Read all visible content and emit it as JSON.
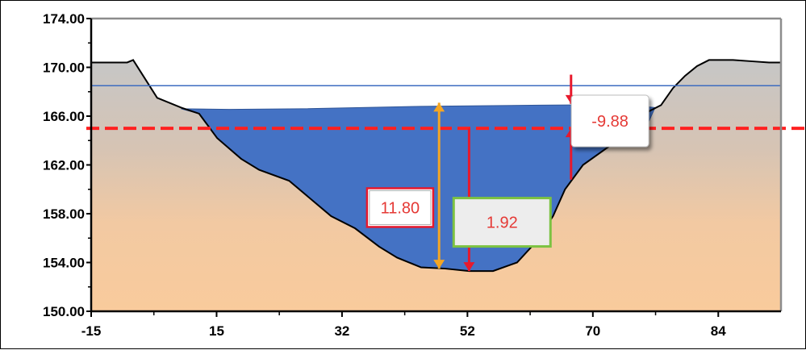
{
  "chart_data": {
    "type": "area",
    "title": "",
    "xlabel": "",
    "ylabel": "",
    "xlim": [
      -15,
      100
    ],
    "ylim": [
      150,
      174
    ],
    "y_ticks": [
      150.0,
      154.0,
      158.0,
      162.0,
      166.0,
      170.0,
      174.0
    ],
    "y_tick_labels": [
      "150.00",
      "154.00",
      "158.00",
      "162.00",
      "166.00",
      "170.00",
      "174.00"
    ],
    "x_tick_labels": [
      "-15",
      "15",
      "32",
      "52",
      "70",
      "84"
    ],
    "grid": false,
    "legend": "none",
    "series": [
      {
        "kind": "terrain",
        "x": [
          -15,
          -11,
          -9,
          -8,
          -4,
          0,
          3,
          6,
          10,
          13,
          18,
          25,
          29,
          33,
          36,
          40,
          44,
          48,
          52,
          56,
          59,
          62,
          64,
          67,
          71,
          75,
          78,
          80,
          82,
          84,
          86,
          88,
          90,
          92,
          95,
          98,
          100
        ],
        "y": [
          170.4,
          170.4,
          170.4,
          170.6,
          167.5,
          166.7,
          166.2,
          164.2,
          162.5,
          161.6,
          160.7,
          157.8,
          156.8,
          155.3,
          154.4,
          153.6,
          153.5,
          153.3,
          153.3,
          154.0,
          155.6,
          157.8,
          160.0,
          162.0,
          163.4,
          164.7,
          166.4,
          166.9,
          168.3,
          169.3,
          170.1,
          170.6,
          170.6,
          170.6,
          170.5,
          170.4,
          170.4
        ]
      },
      {
        "kind": "water",
        "x": [
          0,
          8,
          20,
          40,
          60,
          74,
          79,
          78,
          75,
          71,
          67,
          64,
          62,
          59,
          56,
          52,
          48,
          44,
          40,
          36,
          33,
          29,
          25,
          18,
          13,
          10,
          6,
          3,
          0
        ],
        "y": [
          166.6,
          166.55,
          166.6,
          166.8,
          166.9,
          166.95,
          166.7,
          165.6,
          164.7,
          163.4,
          162.0,
          160.0,
          157.8,
          155.6,
          154.0,
          153.3,
          153.3,
          153.5,
          153.6,
          154.4,
          155.3,
          156.8,
          157.8,
          160.7,
          161.6,
          162.5,
          164.2,
          166.2,
          166.6
        ]
      }
    ],
    "reference_lines": [
      {
        "style": "thin-blue",
        "y": 168.5,
        "color": "#3d6cc0"
      },
      {
        "style": "red-dashed",
        "y": 165.0,
        "color": "#ff2020"
      }
    ],
    "arrows": [
      {
        "color": "#f5a623",
        "x": 43,
        "y1": 167.1,
        "y2": 153.5
      },
      {
        "color": "#e8192c",
        "x": 48,
        "y1": 165.0,
        "y2": 153.3
      },
      {
        "color": "#e8192c",
        "x": 65,
        "y1": 169.4,
        "y2": 167.0
      },
      {
        "color": "#e8192c",
        "x": 65,
        "y1": 160.8,
        "y2": 165.0
      }
    ],
    "annotations": [
      {
        "text": "11.80",
        "box": "red-border",
        "x": 36.5,
        "y": 158.5
      },
      {
        "text": "1.92",
        "box": "green-border",
        "x": 53.5,
        "y": 157.3
      },
      {
        "text": "-9.88",
        "box": "shadow",
        "x": 71.5,
        "y": 165.6
      }
    ],
    "colors": {
      "water": "#4472c4",
      "ground_top": "#c9c9c9",
      "ground_bottom": "#f9cb9c",
      "sky": "#ffffff",
      "outline": "#000000"
    }
  }
}
